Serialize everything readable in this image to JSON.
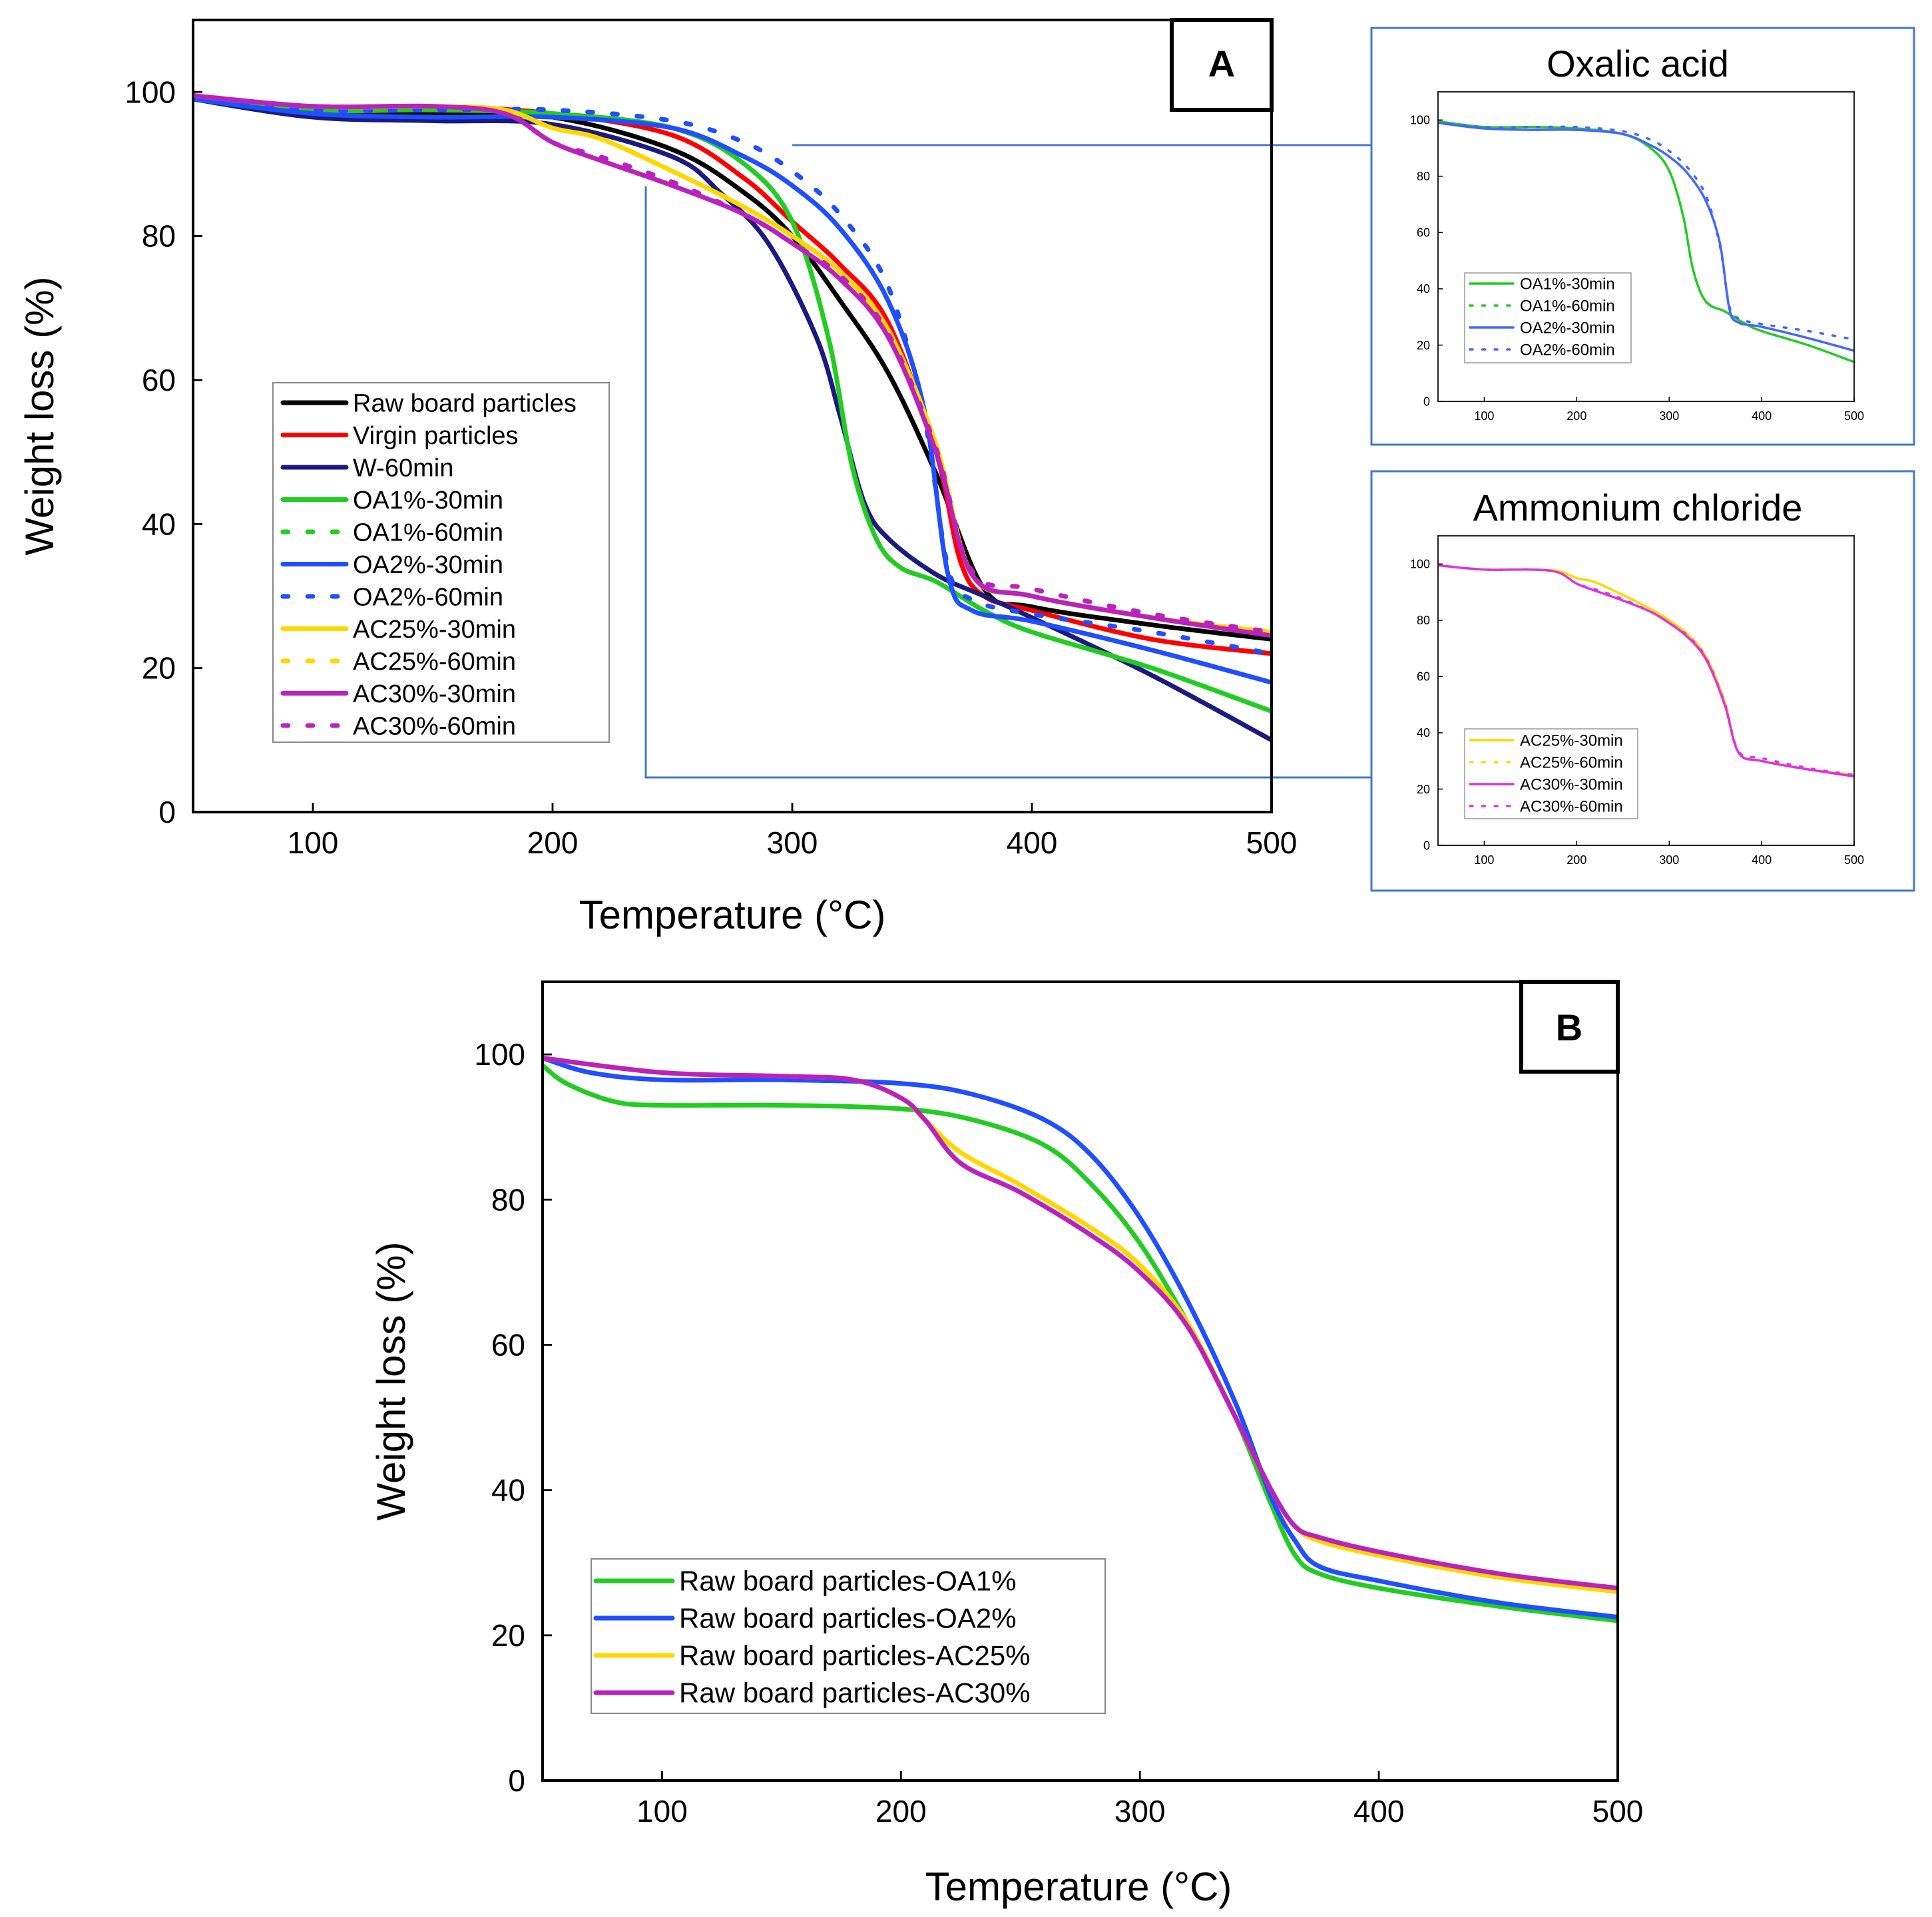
{
  "chart_data": [
    {
      "id": "A",
      "type": "line",
      "panel_label": "A",
      "xlabel": "Temperature (°C)",
      "ylabel": "Weight loss (%)",
      "xlim": [
        50,
        500
      ],
      "ylim": [
        0,
        110
      ],
      "xticks": [
        100,
        200,
        300,
        400,
        500
      ],
      "yticks": [
        0,
        20,
        40,
        60,
        80,
        100
      ],
      "legend_position": "lower-left",
      "series": [
        {
          "name": "Raw board particles",
          "color": "#000000",
          "style": "solid",
          "x": [
            50,
            100,
            150,
            200,
            250,
            280,
            300,
            320,
            340,
            360,
            380,
            400,
            450,
            500
          ],
          "y": [
            99,
            97.5,
            97,
            96.5,
            92,
            86,
            80,
            71,
            61,
            47,
            31,
            28.5,
            26,
            24
          ]
        },
        {
          "name": "Virgin particles",
          "color": "#ff0000",
          "style": "solid",
          "x": [
            50,
            100,
            150,
            200,
            250,
            280,
            300,
            320,
            340,
            360,
            370,
            380,
            400,
            450,
            500
          ],
          "y": [
            99.5,
            98,
            98,
            97,
            94,
            88,
            82,
            76,
            68,
            50,
            35,
            30,
            28,
            24,
            22
          ]
        },
        {
          "name": "W-60min",
          "color": "#1a1a80",
          "style": "solid",
          "x": [
            50,
            100,
            150,
            200,
            250,
            270,
            290,
            310,
            320,
            330,
            340,
            360,
            380,
            400,
            450,
            500
          ],
          "y": [
            99,
            96.5,
            96,
            95.5,
            91,
            86,
            79,
            66,
            55,
            43,
            38,
            33,
            30,
            27,
            19,
            10
          ]
        },
        {
          "name": "OA1%-30min",
          "color": "#22cc22",
          "style": "solid",
          "x": [
            50,
            100,
            150,
            200,
            250,
            280,
            300,
            315,
            325,
            335,
            345,
            360,
            380,
            400,
            450,
            500
          ],
          "y": [
            99.5,
            97.5,
            97.5,
            97,
            95,
            90,
            82,
            66,
            48,
            38,
            34,
            32,
            28,
            25,
            20,
            14
          ]
        },
        {
          "name": "OA1%-60min",
          "color": "#22cc22",
          "style": "dotted",
          "x": [
            50,
            100,
            150,
            200,
            250,
            280,
            300,
            315,
            325,
            335,
            345,
            360,
            380,
            400,
            450,
            500
          ],
          "y": [
            99.5,
            97.5,
            97.5,
            97,
            95,
            90,
            82,
            66,
            48,
            38,
            34,
            32,
            28,
            25,
            20,
            14
          ]
        },
        {
          "name": "OA2%-30min",
          "color": "#1f4fff",
          "style": "solid",
          "x": [
            50,
            100,
            150,
            200,
            250,
            280,
            300,
            320,
            340,
            355,
            365,
            375,
            400,
            450,
            500
          ],
          "y": [
            99,
            97,
            96.5,
            96.5,
            95,
            91,
            87,
            81,
            71,
            56,
            33,
            28,
            26.5,
            22.5,
            18
          ]
        },
        {
          "name": "OA2%-60min",
          "color": "#1f4fff",
          "style": "dotted",
          "x": [
            50,
            100,
            150,
            200,
            250,
            280,
            300,
            320,
            340,
            355,
            365,
            375,
            400,
            450,
            500
          ],
          "y": [
            99,
            97.5,
            97.5,
            97.5,
            96,
            93,
            89,
            83,
            73,
            55,
            34,
            29.5,
            27.5,
            25,
            22
          ]
        },
        {
          "name": "AC25%-30min",
          "color": "#ffd700",
          "style": "solid",
          "x": [
            50,
            100,
            150,
            180,
            200,
            220,
            250,
            280,
            300,
            320,
            340,
            360,
            375,
            400,
            450,
            500
          ],
          "y": [
            99.5,
            98,
            98,
            97.5,
            95,
            93.5,
            89,
            84,
            80,
            75,
            67,
            51,
            33,
            30,
            27,
            25
          ]
        },
        {
          "name": "AC25%-60min",
          "color": "#ffd700",
          "style": "dotted",
          "x": [
            50,
            100,
            150,
            180,
            200,
            220,
            250,
            280,
            300,
            320,
            340,
            360,
            375,
            400,
            450,
            500
          ],
          "y": [
            99.5,
            98,
            98,
            97.5,
            95,
            93.5,
            89,
            84,
            80,
            75,
            67,
            51,
            33,
            30,
            27,
            25
          ]
        },
        {
          "name": "AC30%-30min",
          "color": "#bb22bb",
          "style": "solid",
          "x": [
            50,
            100,
            150,
            180,
            200,
            220,
            250,
            280,
            300,
            320,
            340,
            360,
            375,
            400,
            450,
            500
          ],
          "y": [
            99.5,
            98,
            98,
            97,
            93,
            90.5,
            87,
            83,
            79,
            74,
            66,
            50,
            33,
            30,
            27,
            24.5
          ]
        },
        {
          "name": "AC30%-60min",
          "color": "#bb22bb",
          "style": "dotted",
          "x": [
            50,
            100,
            150,
            180,
            200,
            220,
            250,
            280,
            300,
            320,
            340,
            360,
            375,
            400,
            450,
            500
          ],
          "y": [
            99.5,
            98,
            98,
            97,
            93,
            91,
            87.5,
            83,
            79,
            74.5,
            66.5,
            50.5,
            33.5,
            31,
            27.5,
            25
          ]
        }
      ]
    },
    {
      "id": "inset_oxalic",
      "type": "line",
      "title": "Oxalic acid",
      "xlim": [
        50,
        500
      ],
      "ylim": [
        0,
        110
      ],
      "xticks": [
        100,
        200,
        300,
        400,
        500
      ],
      "yticks": [
        0,
        20,
        40,
        60,
        80,
        100
      ],
      "legend_position": "lower-left",
      "series": [
        {
          "name": "OA1%-30min",
          "color": "#22cc22",
          "style": "solid",
          "x": [
            50,
            100,
            150,
            200,
            250,
            280,
            300,
            315,
            325,
            335,
            345,
            360,
            380,
            400,
            450,
            500
          ],
          "y": [
            99.5,
            97.5,
            97.5,
            97,
            95,
            90,
            82,
            66,
            48,
            38,
            34,
            32,
            28,
            25,
            20,
            14
          ]
        },
        {
          "name": "OA1%-60min",
          "color": "#22cc22",
          "style": "dotted",
          "x": [
            50,
            100,
            150,
            200,
            250,
            280,
            300,
            315,
            325,
            335,
            345,
            360,
            380,
            400,
            450,
            500
          ],
          "y": [
            99.5,
            97.5,
            97.5,
            97,
            95,
            90,
            82,
            66,
            48,
            38,
            34,
            32,
            28,
            25,
            20,
            14
          ]
        },
        {
          "name": "OA2%-30min",
          "color": "#4466ff",
          "style": "solid",
          "x": [
            50,
            100,
            150,
            200,
            250,
            280,
            300,
            320,
            340,
            355,
            365,
            375,
            400,
            450,
            500
          ],
          "y": [
            99,
            97,
            96.5,
            96.5,
            95,
            91,
            87,
            81,
            71,
            56,
            33,
            28,
            26.5,
            22.5,
            18
          ]
        },
        {
          "name": "OA2%-60min",
          "color": "#4466ff",
          "style": "dotted",
          "x": [
            50,
            100,
            150,
            200,
            250,
            280,
            300,
            320,
            340,
            355,
            365,
            375,
            400,
            450,
            500
          ],
          "y": [
            99,
            97.5,
            97.5,
            97.5,
            96,
            93,
            89,
            83,
            73,
            55,
            34,
            29.5,
            27.5,
            25,
            22
          ]
        }
      ]
    },
    {
      "id": "inset_ammonium",
      "type": "line",
      "title": "Ammonium chloride",
      "xlim": [
        50,
        500
      ],
      "ylim": [
        0,
        110
      ],
      "xticks": [
        100,
        200,
        300,
        400,
        500
      ],
      "yticks": [
        0,
        20,
        40,
        60,
        80,
        100
      ],
      "legend_position": "lower-left",
      "series": [
        {
          "name": "AC25%-30min",
          "color": "#ffd700",
          "style": "solid",
          "x": [
            50,
            100,
            150,
            180,
            200,
            220,
            250,
            280,
            300,
            320,
            340,
            360,
            375,
            400,
            450,
            500
          ],
          "y": [
            99.5,
            98,
            98,
            97.5,
            95,
            93.5,
            89,
            84,
            80,
            75,
            67,
            51,
            33,
            30,
            27,
            25
          ]
        },
        {
          "name": "AC25%-60min",
          "color": "#ffd700",
          "style": "dotted",
          "x": [
            50,
            100,
            150,
            180,
            200,
            220,
            250,
            280,
            300,
            320,
            340,
            360,
            375,
            400,
            450,
            500
          ],
          "y": [
            99.5,
            98,
            98,
            97.5,
            95,
            93.5,
            89,
            84,
            80,
            75,
            67,
            51,
            33,
            30,
            27,
            25
          ]
        },
        {
          "name": "AC30%-30min",
          "color": "#dd33dd",
          "style": "solid",
          "x": [
            50,
            100,
            150,
            180,
            200,
            220,
            250,
            280,
            300,
            320,
            340,
            360,
            375,
            400,
            450,
            500
          ],
          "y": [
            99.5,
            98,
            98,
            97,
            93,
            90.5,
            87,
            83,
            79,
            74,
            66,
            50,
            33,
            30,
            27,
            24.5
          ]
        },
        {
          "name": "AC30%-60min",
          "color": "#dd33dd",
          "style": "dotted",
          "x": [
            50,
            100,
            150,
            180,
            200,
            220,
            250,
            280,
            300,
            320,
            340,
            360,
            375,
            400,
            450,
            500
          ],
          "y": [
            99.5,
            98,
            98,
            97,
            93,
            91,
            87.5,
            83,
            79,
            74.5,
            66.5,
            50.5,
            33.5,
            31,
            27.5,
            25
          ]
        }
      ]
    },
    {
      "id": "B",
      "type": "line",
      "panel_label": "B",
      "xlabel": "Temperature (°C)",
      "ylabel": "Weight loss (%)",
      "xlim": [
        50,
        500
      ],
      "ylim": [
        0,
        110
      ],
      "xticks": [
        100,
        200,
        300,
        400,
        500
      ],
      "yticks": [
        0,
        20,
        40,
        60,
        80,
        100
      ],
      "legend_position": "lower-left",
      "series": [
        {
          "name": "Raw board particles-OA1%",
          "color": "#22cc22",
          "style": "solid",
          "x": [
            50,
            60,
            80,
            100,
            150,
            200,
            230,
            260,
            280,
            300,
            320,
            340,
            355,
            365,
            375,
            400,
            450,
            500
          ],
          "y": [
            98.5,
            96,
            93.5,
            93,
            93,
            92.5,
            91,
            87.5,
            82,
            74,
            63,
            50,
            38,
            31,
            28.5,
            26.5,
            24,
            22
          ]
        },
        {
          "name": "Raw board particles-OA2%",
          "color": "#1f4fff",
          "style": "solid",
          "x": [
            50,
            70,
            100,
            150,
            200,
            230,
            260,
            280,
            300,
            320,
            340,
            355,
            365,
            375,
            400,
            450,
            500
          ],
          "y": [
            99.5,
            97.5,
            96.5,
            96.5,
            96,
            94.5,
            91,
            86,
            77.5,
            66,
            52,
            39,
            33,
            29.5,
            27.5,
            24.5,
            22.5
          ]
        },
        {
          "name": "Raw board particles-AC25%",
          "color": "#ffd700",
          "style": "solid",
          "x": [
            50,
            100,
            150,
            180,
            200,
            210,
            225,
            250,
            280,
            300,
            320,
            340,
            355,
            365,
            375,
            400,
            450,
            500
          ],
          "y": [
            99.5,
            97.5,
            97,
            96.5,
            94,
            91,
            86.5,
            82,
            76,
            71,
            63,
            50,
            40,
            35,
            33,
            31,
            28,
            26
          ]
        },
        {
          "name": "Raw board particles-AC30%",
          "color": "#bb22bb",
          "style": "solid",
          "x": [
            50,
            100,
            150,
            180,
            200,
            210,
            225,
            250,
            280,
            300,
            320,
            340,
            355,
            365,
            375,
            400,
            450,
            500
          ],
          "y": [
            99.5,
            97.5,
            97,
            96.5,
            94,
            91,
            85,
            81,
            75,
            70,
            62.5,
            50,
            40,
            35,
            33.5,
            31.5,
            28.5,
            26.5
          ]
        }
      ]
    }
  ]
}
